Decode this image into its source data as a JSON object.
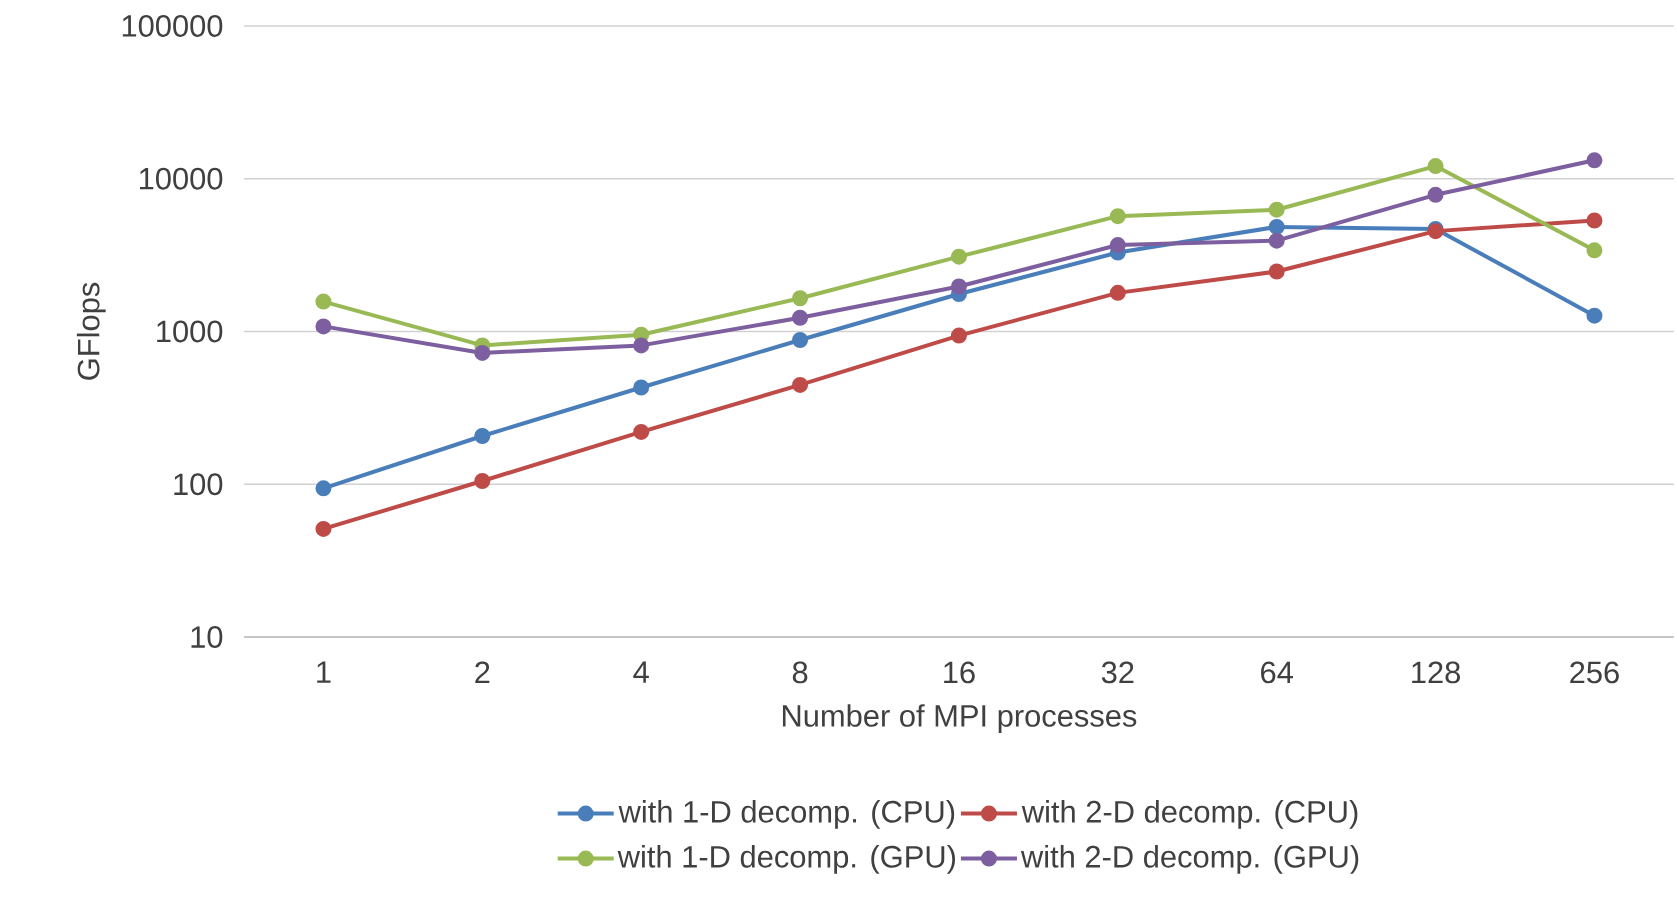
{
  "chart_data": {
    "type": "line",
    "xlabel": "Number of MPI processes",
    "ylabel": "GFlops",
    "categories": [
      "1",
      "2",
      "4",
      "8",
      "16",
      "32",
      "64",
      "128",
      "256"
    ],
    "series": [
      {
        "name": "with 1-D decomp. (CPU)",
        "color": "#4a7ebb",
        "values": [
          94,
          207,
          430,
          880,
          1760,
          3290,
          4840,
          4690,
          1270
        ]
      },
      {
        "name": "with 2-D decomp. (CPU)",
        "color": "#be4b48",
        "values": [
          51,
          105,
          220,
          447,
          940,
          1790,
          2470,
          4540,
          5330
        ]
      },
      {
        "name": "with 1-D decomp. (GPU)",
        "color": "#98b954",
        "values": [
          1570,
          811,
          953,
          1650,
          3090,
          5690,
          6270,
          12100,
          3400
        ]
      },
      {
        "name": "with 2-D decomp. (GPU)",
        "color": "#7d5fa0",
        "values": [
          1080,
          724,
          811,
          1230,
          1970,
          3680,
          3930,
          7850,
          13200
        ]
      }
    ],
    "log": "y",
    "ylim": [
      10,
      100000
    ],
    "yticks": [
      10,
      100,
      1000,
      10000,
      100000
    ],
    "grid": "y",
    "legend": "bottom",
    "marker": "circle",
    "line_style": "solid"
  }
}
